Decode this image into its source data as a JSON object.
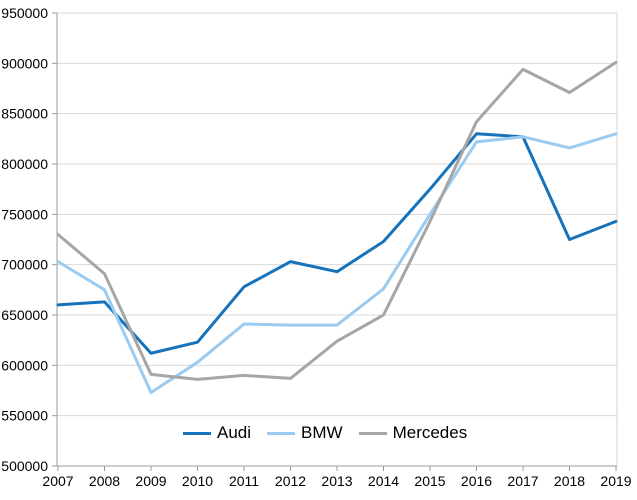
{
  "chart_data": {
    "type": "line",
    "title": "",
    "xlabel": "",
    "ylabel": "",
    "x": [
      "2007",
      "2008",
      "2009",
      "2010",
      "2011",
      "2012",
      "2013",
      "2014",
      "2015",
      "2016",
      "2017",
      "2018",
      "2019"
    ],
    "series": [
      {
        "name": "Audi",
        "color": "#1673bb",
        "values": [
          660000,
          663000,
          612000,
          623000,
          678000,
          703000,
          693000,
          723000,
          775000,
          830000,
          827000,
          725000,
          743000
        ]
      },
      {
        "name": "BMW",
        "color": "#9bcbf0",
        "values": [
          703000,
          675000,
          573000,
          603000,
          641000,
          640000,
          640000,
          676000,
          750000,
          822000,
          827000,
          816000,
          830000
        ]
      },
      {
        "name": "Mercedes",
        "color": "#a6a6a6",
        "values": [
          730000,
          691000,
          591000,
          586000,
          590000,
          587000,
          624000,
          650000,
          743000,
          842000,
          894000,
          871000,
          901000
        ]
      }
    ],
    "ylim": [
      500000,
      950000
    ],
    "ytick_step": 50000,
    "y_tick_labels": [
      "500000",
      "550000",
      "600000",
      "650000",
      "700000",
      "750000",
      "800000",
      "850000",
      "900000",
      "950000"
    ],
    "x_tick_labels": [
      "2007",
      "2008",
      "2009",
      "2010",
      "2011",
      "2012",
      "2013",
      "2014",
      "2015",
      "2016",
      "2017",
      "2018",
      "2019"
    ],
    "grid": "horizontal",
    "legend_position": "bottom-center-inside"
  },
  "colors": {
    "grid": "#d9d9d9",
    "plot_border": "#d4d4d4",
    "axis": "#9b9b9b",
    "text": "#000000",
    "background": "#ffffff"
  }
}
